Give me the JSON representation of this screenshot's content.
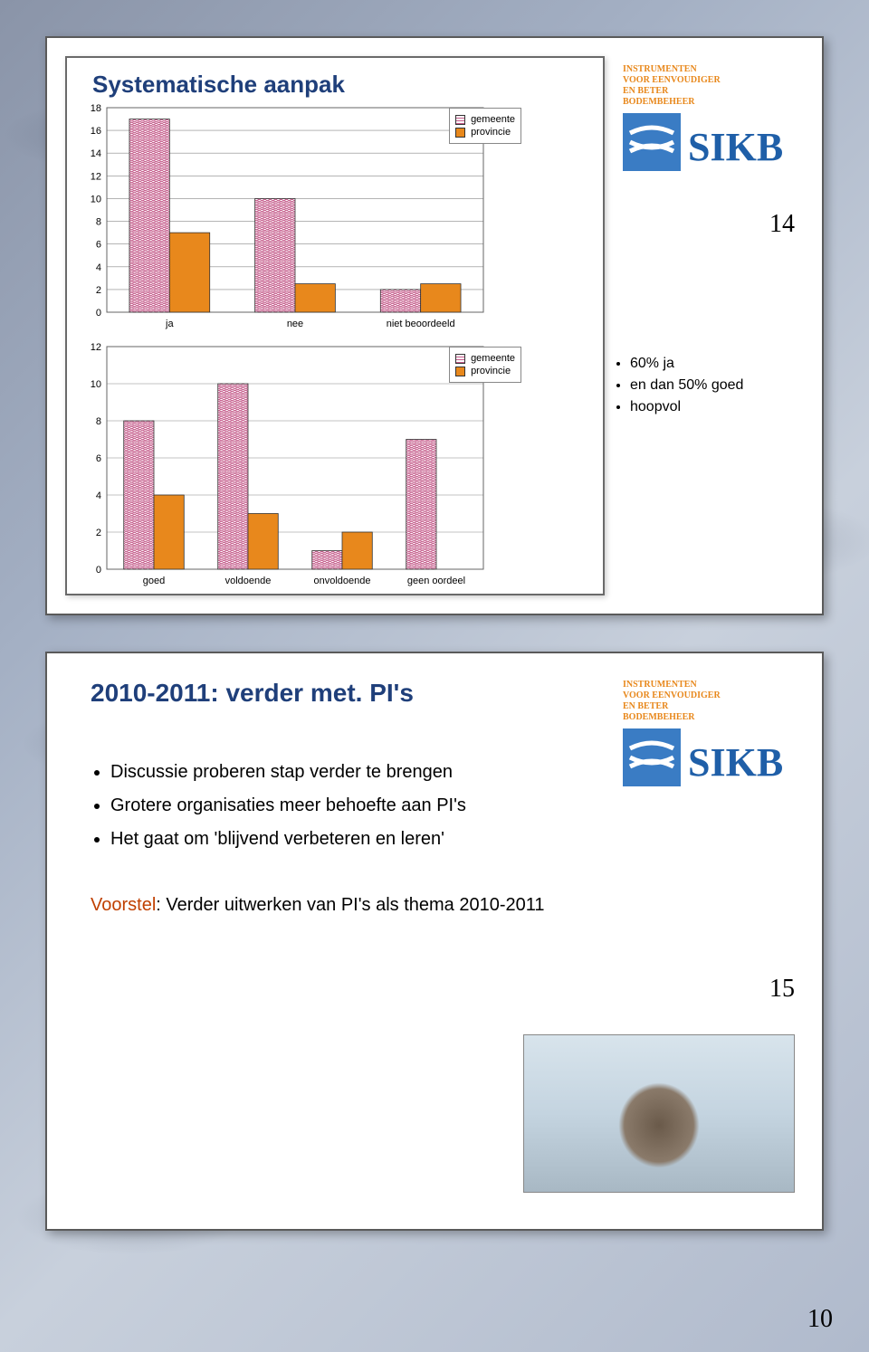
{
  "page_number": "10",
  "logo": {
    "tagline1": "INSTRUMENTEN",
    "tagline2": "VOOR EENVOUDIGER",
    "tagline3": "EN BETER",
    "tagline4": "BODEMBEHEER",
    "name": "SIKB",
    "tag_color": "#e8881c",
    "name_color": "#1f5fa8",
    "icon_color": "#3a7cc4"
  },
  "slide1": {
    "title": "Systematische aanpak",
    "page_num": "14",
    "side_bullets": [
      "60% ja",
      "en dan 50% goed",
      "hoopvol"
    ],
    "chart1": {
      "ylim": [
        0,
        18
      ],
      "ytick_step": 2,
      "categories": [
        "ja",
        "nee",
        "niet beoordeeld"
      ],
      "series": [
        {
          "name": "gemeente",
          "values": [
            17,
            10,
            2
          ],
          "pattern": "hatch",
          "color": "#c45a8a"
        },
        {
          "name": "provincie",
          "values": [
            7,
            2.5,
            2.5
          ],
          "pattern": "solid",
          "color": "#e8881c"
        }
      ],
      "bar_width": 0.32,
      "grid_color": "#888888",
      "axis_fontsize": 11
    },
    "chart2": {
      "ylim": [
        0,
        12
      ],
      "ytick_step": 2,
      "categories": [
        "goed",
        "voldoende",
        "onvoldoende",
        "geen oordeel"
      ],
      "series": [
        {
          "name": "gemeente",
          "values": [
            8,
            10,
            1,
            7
          ],
          "pattern": "hatch",
          "color": "#c45a8a"
        },
        {
          "name": "provincie",
          "values": [
            4,
            3,
            2,
            0
          ],
          "pattern": "solid",
          "color": "#e8881c"
        }
      ],
      "bar_width": 0.32,
      "grid_color": "#888888",
      "axis_fontsize": 11
    },
    "legend": {
      "items": [
        "gemeente",
        "provincie"
      ]
    }
  },
  "slide2": {
    "title": "2010-2011: verder met. PI's",
    "page_num": "15",
    "bullets": [
      "Discussie proberen stap verder te brengen",
      "Grotere organisaties meer behoefte aan PI's",
      "Het gaat om 'blijvend verbeteren en leren'"
    ],
    "proposal_label": "Voorstel",
    "proposal_text": ": Verder uitwerken van PI's als thema 2010-2011"
  },
  "colors": {
    "title_color": "#1f3f7a",
    "proposal_color": "#c04000",
    "hatch_fill": "#c45a8a",
    "solid_fill": "#e8881c"
  }
}
